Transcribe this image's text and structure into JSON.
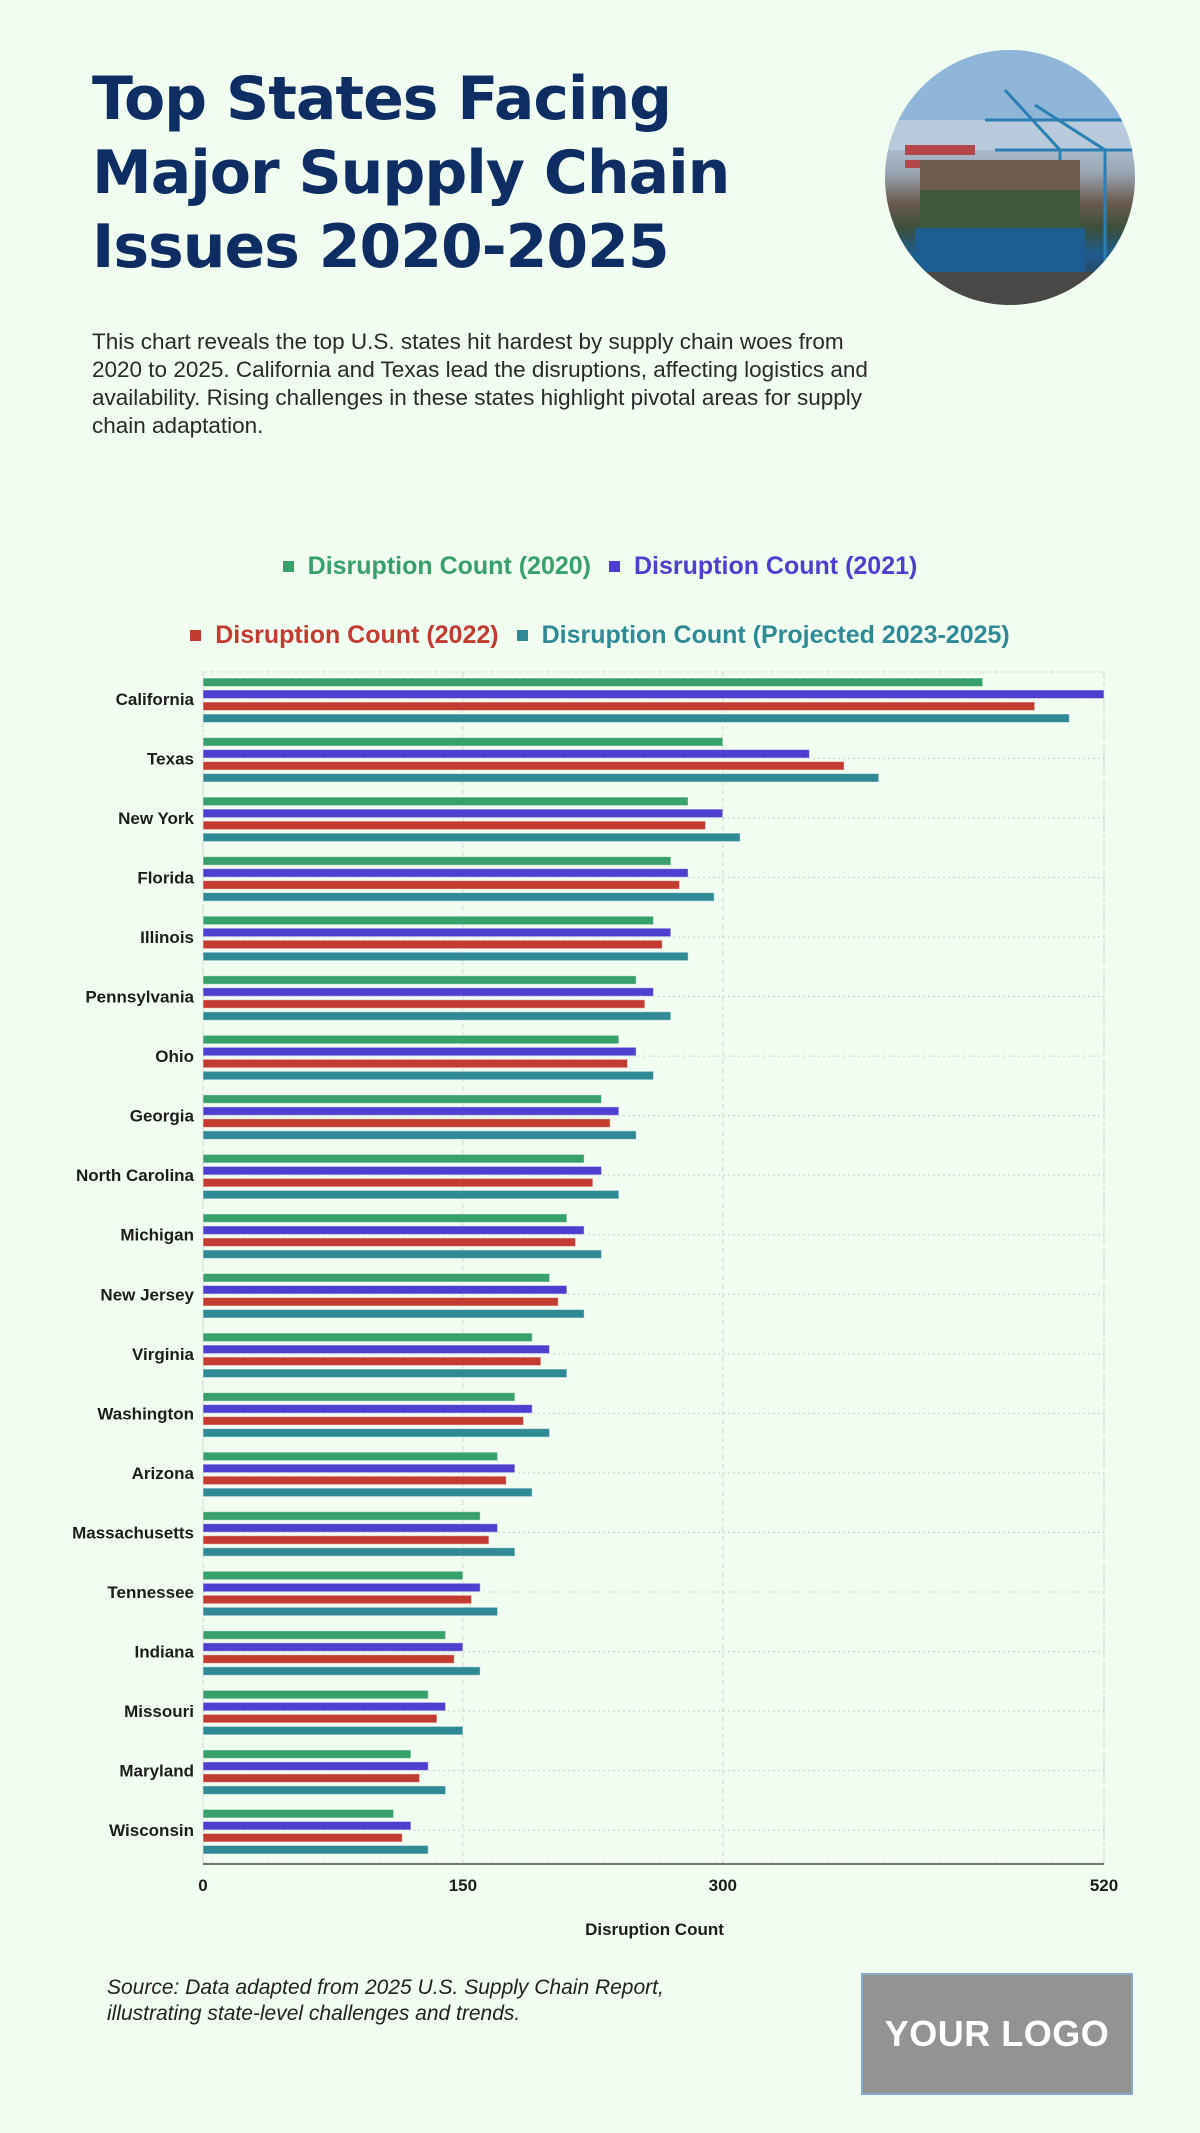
{
  "header": {
    "title": "Top States Facing Major Supply Chain Issues 2020-2025",
    "description": "This chart reveals the top U.S. states hit hardest by supply chain woes from 2020 to 2025. California and Texas lead the disruptions, affecting logistics and availability. Rising challenges in these states highlight pivotal areas for supply chain adaptation.",
    "hero_image": "container-ship-at-port-photo"
  },
  "footer": {
    "source": "Source: Data adapted from 2025 U.S. Supply Chain Report, illustrating state-level challenges and trends.",
    "logo_text": "YOUR LOGO"
  },
  "chart_data": {
    "type": "bar",
    "orientation": "horizontal",
    "title": "Top States Facing Major Supply Chain Issues 2020-2025",
    "xlabel": "Disruption Count",
    "ylabel": "",
    "xlim": [
      0,
      520
    ],
    "xticks": [
      0,
      150,
      300,
      520
    ],
    "grid": true,
    "legend_position": "top-center",
    "categories": [
      "California",
      "Texas",
      "New York",
      "Florida",
      "Illinois",
      "Pennsylvania",
      "Ohio",
      "Georgia",
      "North Carolina",
      "Michigan",
      "New Jersey",
      "Virginia",
      "Washington",
      "Arizona",
      "Massachusetts",
      "Tennessee",
      "Indiana",
      "Missouri",
      "Maryland",
      "Wisconsin"
    ],
    "series": [
      {
        "name": "Disruption Count (2020)",
        "color": "#38a06b",
        "values": [
          450,
          300,
          280,
          270,
          260,
          250,
          240,
          230,
          220,
          210,
          200,
          190,
          180,
          170,
          160,
          150,
          140,
          130,
          120,
          110
        ]
      },
      {
        "name": "Disruption Count (2021)",
        "color": "#4f3fcf",
        "values": [
          520,
          350,
          300,
          280,
          270,
          260,
          250,
          240,
          230,
          220,
          210,
          200,
          190,
          180,
          170,
          160,
          150,
          140,
          130,
          120
        ]
      },
      {
        "name": "Disruption Count (2022)",
        "color": "#c23c32",
        "values": [
          480,
          370,
          290,
          275,
          265,
          255,
          245,
          235,
          225,
          215,
          205,
          195,
          185,
          175,
          165,
          155,
          145,
          135,
          125,
          115
        ]
      },
      {
        "name": "Disruption Count (Projected 2023-2025)",
        "color": "#2f8a95",
        "values": [
          500,
          390,
          310,
          295,
          280,
          270,
          260,
          250,
          240,
          230,
          220,
          210,
          200,
          190,
          180,
          170,
          160,
          150,
          140,
          130
        ]
      }
    ]
  }
}
